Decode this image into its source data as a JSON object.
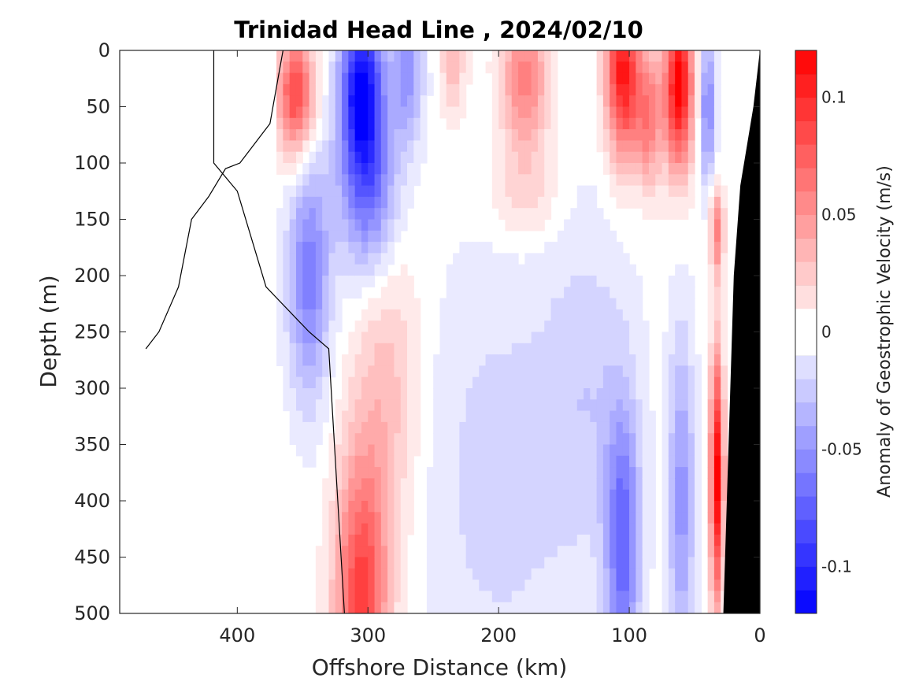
{
  "chart_data": {
    "type": "heatmap",
    "title": "Trinidad Head Line , 2024/02/10",
    "xlabel": "Offshore Distance (km)",
    "ylabel": "Depth (m)",
    "colorbar_label": "Anomaly of Geostrophic Velocity (m/s)",
    "xlim": [
      490,
      0
    ],
    "ylim": [
      0,
      500
    ],
    "x_reversed": true,
    "y_reversed": true,
    "xticks": [
      400,
      300,
      200,
      100,
      0
    ],
    "yticks": [
      0,
      50,
      100,
      150,
      200,
      250,
      300,
      350,
      400,
      450,
      500
    ],
    "clim": [
      -0.12,
      0.12
    ],
    "colorbar_ticks": [
      -0.1,
      -0.05,
      0,
      0.05,
      0.1
    ],
    "colorbar_ticklabels": [
      "-0.1",
      "-0.05",
      "0",
      "0.05",
      "0.1"
    ],
    "colormap": "blue-white-red",
    "levels_step": 0.01,
    "zero_contour_color": "#000000",
    "bathymetry_color": "#000000",
    "data_extent_km": [
      370,
      0
    ],
    "x": [
      370,
      360,
      350,
      340,
      330,
      320,
      310,
      300,
      290,
      280,
      270,
      260,
      250,
      240,
      230,
      220,
      210,
      200,
      190,
      180,
      170,
      160,
      150,
      140,
      130,
      120,
      110,
      100,
      90,
      80,
      70,
      60,
      50,
      40,
      30,
      20
    ],
    "y": [
      0,
      25,
      50,
      75,
      100,
      125,
      150,
      175,
      200,
      250,
      300,
      350,
      400,
      450,
      500
    ],
    "features": [
      {
        "name": "surface-red-core-350",
        "x": 355,
        "depth": 40,
        "value": 0.09
      },
      {
        "name": "surface-blue-core-305",
        "x": 305,
        "depth": 30,
        "value": -0.11
      },
      {
        "name": "surface-blue-core-270",
        "x": 270,
        "depth": 20,
        "value": -0.05
      },
      {
        "name": "surface-red-core-180",
        "x": 180,
        "depth": 25,
        "value": 0.06
      },
      {
        "name": "surface-red-core-105",
        "x": 105,
        "depth": 20,
        "value": 0.11
      },
      {
        "name": "surface-red-core-62",
        "x": 62,
        "depth": 30,
        "value": 0.12
      },
      {
        "name": "surface-blue-core-40",
        "x": 40,
        "depth": 50,
        "value": -0.06
      },
      {
        "name": "deep-red-core-305",
        "x": 305,
        "depth": 490,
        "value": 0.09
      },
      {
        "name": "deep-blue-core-105",
        "x": 105,
        "depth": 440,
        "value": -0.07
      },
      {
        "name": "deep-blue-core-60",
        "x": 60,
        "depth": 400,
        "value": -0.05
      },
      {
        "name": "mid-blue-core-345",
        "x": 345,
        "depth": 200,
        "value": -0.06
      },
      {
        "name": "slope-red-core-35",
        "x": 33,
        "depth": 380,
        "value": 0.12
      }
    ]
  }
}
